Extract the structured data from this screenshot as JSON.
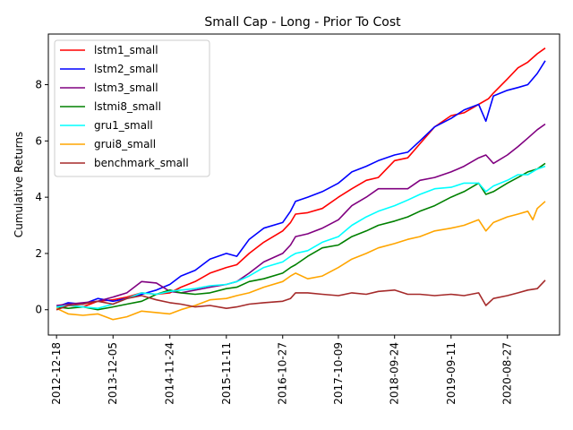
{
  "chart_data": {
    "type": "line",
    "title": "Small Cap - Long - Prior To Cost",
    "xlabel": "",
    "ylabel": "Cumulative Returns",
    "x_ticks": [
      "2012-12-18",
      "2013-12-05",
      "2014-11-24",
      "2015-11-11",
      "2016-10-27",
      "2017-10-09",
      "2018-09-24",
      "2019-09-11",
      "2020-08-27"
    ],
    "xlim": [
      "2012-10-28",
      "2021-07-18"
    ],
    "ylim": [
      -0.9,
      9.8
    ],
    "y_ticks": [
      0,
      2,
      4,
      6,
      8
    ],
    "legend_position": "top-left",
    "grid": false,
    "series": [
      {
        "name": "lstm1_small",
        "color": "#ff0000",
        "points": [
          [
            "2012-12-18",
            0.0
          ],
          [
            "2013-03-01",
            0.15
          ],
          [
            "2013-06-01",
            0.1
          ],
          [
            "2013-09-01",
            0.3
          ],
          [
            "2013-12-05",
            0.35
          ],
          [
            "2014-03-01",
            0.45
          ],
          [
            "2014-06-01",
            0.6
          ],
          [
            "2014-09-01",
            0.55
          ],
          [
            "2014-11-24",
            0.6
          ],
          [
            "2015-02-01",
            0.8
          ],
          [
            "2015-05-01",
            1.0
          ],
          [
            "2015-08-01",
            1.3
          ],
          [
            "2015-11-11",
            1.5
          ],
          [
            "2016-01-15",
            1.6
          ],
          [
            "2016-04-01",
            2.0
          ],
          [
            "2016-07-01",
            2.4
          ],
          [
            "2016-10-27",
            2.8
          ],
          [
            "2016-12-15",
            3.1
          ],
          [
            "2017-01-15",
            3.4
          ],
          [
            "2017-04-01",
            3.45
          ],
          [
            "2017-07-01",
            3.6
          ],
          [
            "2017-10-09",
            4.0
          ],
          [
            "2018-01-01",
            4.3
          ],
          [
            "2018-04-01",
            4.6
          ],
          [
            "2018-06-15",
            4.7
          ],
          [
            "2018-09-24",
            5.3
          ],
          [
            "2018-12-15",
            5.4
          ],
          [
            "2019-03-01",
            5.9
          ],
          [
            "2019-06-01",
            6.5
          ],
          [
            "2019-09-11",
            6.9
          ],
          [
            "2019-12-01",
            7.0
          ],
          [
            "2020-03-01",
            7.3
          ],
          [
            "2020-05-01",
            7.5
          ],
          [
            "2020-06-01",
            7.7
          ],
          [
            "2020-08-27",
            8.2
          ],
          [
            "2020-11-01",
            8.6
          ],
          [
            "2021-01-01",
            8.8
          ],
          [
            "2021-03-01",
            9.1
          ],
          [
            "2021-04-20",
            9.3
          ]
        ]
      },
      {
        "name": "lstm2_small",
        "color": "#0000ff",
        "points": [
          [
            "2012-12-18",
            0.1
          ],
          [
            "2013-03-01",
            0.25
          ],
          [
            "2013-06-01",
            0.2
          ],
          [
            "2013-09-01",
            0.4
          ],
          [
            "2013-12-05",
            0.3
          ],
          [
            "2014-03-01",
            0.4
          ],
          [
            "2014-06-01",
            0.55
          ],
          [
            "2014-09-01",
            0.7
          ],
          [
            "2014-11-24",
            0.9
          ],
          [
            "2015-02-01",
            1.2
          ],
          [
            "2015-05-01",
            1.4
          ],
          [
            "2015-08-01",
            1.8
          ],
          [
            "2015-11-11",
            2.0
          ],
          [
            "2016-01-15",
            1.9
          ],
          [
            "2016-04-01",
            2.5
          ],
          [
            "2016-07-01",
            2.9
          ],
          [
            "2016-10-27",
            3.1
          ],
          [
            "2016-12-15",
            3.5
          ],
          [
            "2017-01-15",
            3.85
          ],
          [
            "2017-04-01",
            4.0
          ],
          [
            "2017-07-01",
            4.2
          ],
          [
            "2017-10-09",
            4.5
          ],
          [
            "2018-01-01",
            4.9
          ],
          [
            "2018-04-01",
            5.1
          ],
          [
            "2018-06-15",
            5.3
          ],
          [
            "2018-09-24",
            5.5
          ],
          [
            "2018-12-15",
            5.6
          ],
          [
            "2019-03-01",
            6.0
          ],
          [
            "2019-06-01",
            6.5
          ],
          [
            "2019-09-11",
            6.8
          ],
          [
            "2019-12-01",
            7.1
          ],
          [
            "2020-03-01",
            7.3
          ],
          [
            "2020-04-15",
            6.7
          ],
          [
            "2020-06-01",
            7.6
          ],
          [
            "2020-08-27",
            7.8
          ],
          [
            "2020-11-01",
            7.9
          ],
          [
            "2021-01-01",
            8.0
          ],
          [
            "2021-03-01",
            8.4
          ],
          [
            "2021-04-20",
            8.85
          ]
        ]
      },
      {
        "name": "lstm3_small",
        "color": "#800080",
        "points": [
          [
            "2012-12-18",
            0.15
          ],
          [
            "2013-03-01",
            0.2
          ],
          [
            "2013-06-01",
            0.25
          ],
          [
            "2013-09-01",
            0.3
          ],
          [
            "2013-12-05",
            0.45
          ],
          [
            "2014-03-01",
            0.6
          ],
          [
            "2014-06-01",
            1.0
          ],
          [
            "2014-09-01",
            0.95
          ],
          [
            "2014-11-24",
            0.65
          ],
          [
            "2015-02-01",
            0.6
          ],
          [
            "2015-05-01",
            0.7
          ],
          [
            "2015-08-01",
            0.8
          ],
          [
            "2015-11-11",
            0.9
          ],
          [
            "2016-01-15",
            1.0
          ],
          [
            "2016-04-01",
            1.3
          ],
          [
            "2016-07-01",
            1.7
          ],
          [
            "2016-10-27",
            2.0
          ],
          [
            "2016-12-15",
            2.3
          ],
          [
            "2017-01-15",
            2.6
          ],
          [
            "2017-04-01",
            2.7
          ],
          [
            "2017-07-01",
            2.9
          ],
          [
            "2017-10-09",
            3.2
          ],
          [
            "2018-01-01",
            3.7
          ],
          [
            "2018-04-01",
            4.0
          ],
          [
            "2018-06-15",
            4.3
          ],
          [
            "2018-09-24",
            4.3
          ],
          [
            "2018-12-15",
            4.3
          ],
          [
            "2019-03-01",
            4.6
          ],
          [
            "2019-06-01",
            4.7
          ],
          [
            "2019-09-11",
            4.9
          ],
          [
            "2019-12-01",
            5.1
          ],
          [
            "2020-03-01",
            5.4
          ],
          [
            "2020-04-15",
            5.5
          ],
          [
            "2020-06-01",
            5.2
          ],
          [
            "2020-08-27",
            5.5
          ],
          [
            "2020-11-01",
            5.8
          ],
          [
            "2021-01-01",
            6.1
          ],
          [
            "2021-03-01",
            6.4
          ],
          [
            "2021-04-20",
            6.6
          ]
        ]
      },
      {
        "name": "lstmi8_small",
        "color": "#008000",
        "points": [
          [
            "2012-12-18",
            0.1
          ],
          [
            "2013-03-01",
            0.05
          ],
          [
            "2013-06-01",
            0.1
          ],
          [
            "2013-09-01",
            0.0
          ],
          [
            "2013-12-05",
            0.1
          ],
          [
            "2014-03-01",
            0.2
          ],
          [
            "2014-06-01",
            0.3
          ],
          [
            "2014-09-01",
            0.55
          ],
          [
            "2014-11-24",
            0.7
          ],
          [
            "2015-02-01",
            0.6
          ],
          [
            "2015-05-01",
            0.55
          ],
          [
            "2015-08-01",
            0.6
          ],
          [
            "2015-11-11",
            0.75
          ],
          [
            "2016-01-15",
            0.8
          ],
          [
            "2016-04-01",
            1.0
          ],
          [
            "2016-07-01",
            1.1
          ],
          [
            "2016-10-27",
            1.3
          ],
          [
            "2016-12-15",
            1.5
          ],
          [
            "2017-01-15",
            1.6
          ],
          [
            "2017-04-01",
            1.9
          ],
          [
            "2017-07-01",
            2.2
          ],
          [
            "2017-10-09",
            2.3
          ],
          [
            "2018-01-01",
            2.6
          ],
          [
            "2018-04-01",
            2.8
          ],
          [
            "2018-06-15",
            3.0
          ],
          [
            "2018-09-24",
            3.15
          ],
          [
            "2018-12-15",
            3.3
          ],
          [
            "2019-03-01",
            3.5
          ],
          [
            "2019-06-01",
            3.7
          ],
          [
            "2019-09-11",
            4.0
          ],
          [
            "2019-12-01",
            4.2
          ],
          [
            "2020-03-01",
            4.5
          ],
          [
            "2020-04-15",
            4.1
          ],
          [
            "2020-06-01",
            4.2
          ],
          [
            "2020-08-27",
            4.5
          ],
          [
            "2020-11-01",
            4.7
          ],
          [
            "2021-01-01",
            4.9
          ],
          [
            "2021-03-01",
            5.0
          ],
          [
            "2021-04-20",
            5.2
          ]
        ]
      },
      {
        "name": "gru1_small",
        "color": "#00ffff",
        "points": [
          [
            "2012-12-18",
            0.1
          ],
          [
            "2013-03-01",
            0.15
          ],
          [
            "2013-06-01",
            0.1
          ],
          [
            "2013-09-01",
            0.05
          ],
          [
            "2013-12-05",
            0.2
          ],
          [
            "2014-03-01",
            0.4
          ],
          [
            "2014-06-01",
            0.6
          ],
          [
            "2014-09-01",
            0.55
          ],
          [
            "2014-11-24",
            0.65
          ],
          [
            "2015-02-01",
            0.7
          ],
          [
            "2015-05-01",
            0.75
          ],
          [
            "2015-08-01",
            0.85
          ],
          [
            "2015-11-11",
            0.9
          ],
          [
            "2016-01-15",
            1.0
          ],
          [
            "2016-04-01",
            1.2
          ],
          [
            "2016-07-01",
            1.5
          ],
          [
            "2016-10-27",
            1.7
          ],
          [
            "2016-12-15",
            1.9
          ],
          [
            "2017-01-15",
            2.0
          ],
          [
            "2017-04-01",
            2.1
          ],
          [
            "2017-07-01",
            2.4
          ],
          [
            "2017-10-09",
            2.6
          ],
          [
            "2018-01-01",
            3.0
          ],
          [
            "2018-04-01",
            3.3
          ],
          [
            "2018-06-15",
            3.5
          ],
          [
            "2018-09-24",
            3.7
          ],
          [
            "2018-12-15",
            3.9
          ],
          [
            "2019-03-01",
            4.1
          ],
          [
            "2019-06-01",
            4.3
          ],
          [
            "2019-09-11",
            4.35
          ],
          [
            "2019-12-01",
            4.5
          ],
          [
            "2020-03-01",
            4.5
          ],
          [
            "2020-04-15",
            4.2
          ],
          [
            "2020-06-01",
            4.4
          ],
          [
            "2020-08-27",
            4.6
          ],
          [
            "2020-11-01",
            4.8
          ],
          [
            "2021-01-01",
            4.8
          ],
          [
            "2021-03-01",
            5.0
          ],
          [
            "2021-04-20",
            5.1
          ]
        ]
      },
      {
        "name": "grui8_small",
        "color": "#ffa500",
        "points": [
          [
            "2012-12-18",
            0.05
          ],
          [
            "2013-03-01",
            -0.15
          ],
          [
            "2013-06-01",
            -0.2
          ],
          [
            "2013-09-01",
            -0.15
          ],
          [
            "2013-12-05",
            -0.35
          ],
          [
            "2014-03-01",
            -0.25
          ],
          [
            "2014-06-01",
            -0.05
          ],
          [
            "2014-09-01",
            -0.1
          ],
          [
            "2014-11-24",
            -0.15
          ],
          [
            "2015-02-01",
            0.0
          ],
          [
            "2015-05-01",
            0.15
          ],
          [
            "2015-08-01",
            0.35
          ],
          [
            "2015-11-11",
            0.4
          ],
          [
            "2016-01-15",
            0.5
          ],
          [
            "2016-04-01",
            0.6
          ],
          [
            "2016-07-01",
            0.8
          ],
          [
            "2016-10-27",
            1.0
          ],
          [
            "2016-12-15",
            1.2
          ],
          [
            "2017-01-15",
            1.3
          ],
          [
            "2017-04-01",
            1.1
          ],
          [
            "2017-07-01",
            1.2
          ],
          [
            "2017-10-09",
            1.5
          ],
          [
            "2018-01-01",
            1.8
          ],
          [
            "2018-04-01",
            2.0
          ],
          [
            "2018-06-15",
            2.2
          ],
          [
            "2018-09-24",
            2.35
          ],
          [
            "2018-12-15",
            2.5
          ],
          [
            "2019-03-01",
            2.6
          ],
          [
            "2019-06-01",
            2.8
          ],
          [
            "2019-09-11",
            2.9
          ],
          [
            "2019-12-01",
            3.0
          ],
          [
            "2020-03-01",
            3.2
          ],
          [
            "2020-04-15",
            2.8
          ],
          [
            "2020-06-01",
            3.1
          ],
          [
            "2020-08-27",
            3.3
          ],
          [
            "2020-11-01",
            3.4
          ],
          [
            "2021-01-01",
            3.5
          ],
          [
            "2021-02-01",
            3.2
          ],
          [
            "2021-03-01",
            3.6
          ],
          [
            "2021-04-20",
            3.85
          ]
        ]
      },
      {
        "name": "benchmark_small",
        "color": "#a52a2a",
        "points": [
          [
            "2012-12-18",
            0.0
          ],
          [
            "2013-03-01",
            0.15
          ],
          [
            "2013-06-01",
            0.2
          ],
          [
            "2013-09-01",
            0.3
          ],
          [
            "2013-12-05",
            0.2
          ],
          [
            "2014-03-01",
            0.4
          ],
          [
            "2014-06-01",
            0.5
          ],
          [
            "2014-09-01",
            0.35
          ],
          [
            "2014-11-24",
            0.25
          ],
          [
            "2015-02-01",
            0.2
          ],
          [
            "2015-05-01",
            0.1
          ],
          [
            "2015-08-01",
            0.15
          ],
          [
            "2015-11-11",
            0.05
          ],
          [
            "2016-01-15",
            0.1
          ],
          [
            "2016-04-01",
            0.2
          ],
          [
            "2016-07-01",
            0.25
          ],
          [
            "2016-10-27",
            0.3
          ],
          [
            "2016-12-15",
            0.4
          ],
          [
            "2017-01-15",
            0.6
          ],
          [
            "2017-04-01",
            0.6
          ],
          [
            "2017-07-01",
            0.55
          ],
          [
            "2017-10-09",
            0.5
          ],
          [
            "2018-01-01",
            0.6
          ],
          [
            "2018-04-01",
            0.55
          ],
          [
            "2018-06-15",
            0.65
          ],
          [
            "2018-09-24",
            0.7
          ],
          [
            "2018-12-15",
            0.55
          ],
          [
            "2019-03-01",
            0.55
          ],
          [
            "2019-06-01",
            0.5
          ],
          [
            "2019-09-11",
            0.55
          ],
          [
            "2019-12-01",
            0.5
          ],
          [
            "2020-03-01",
            0.6
          ],
          [
            "2020-04-15",
            0.15
          ],
          [
            "2020-06-01",
            0.4
          ],
          [
            "2020-08-27",
            0.5
          ],
          [
            "2020-11-01",
            0.6
          ],
          [
            "2021-01-01",
            0.7
          ],
          [
            "2021-03-01",
            0.75
          ],
          [
            "2021-04-20",
            1.05
          ]
        ]
      }
    ]
  }
}
